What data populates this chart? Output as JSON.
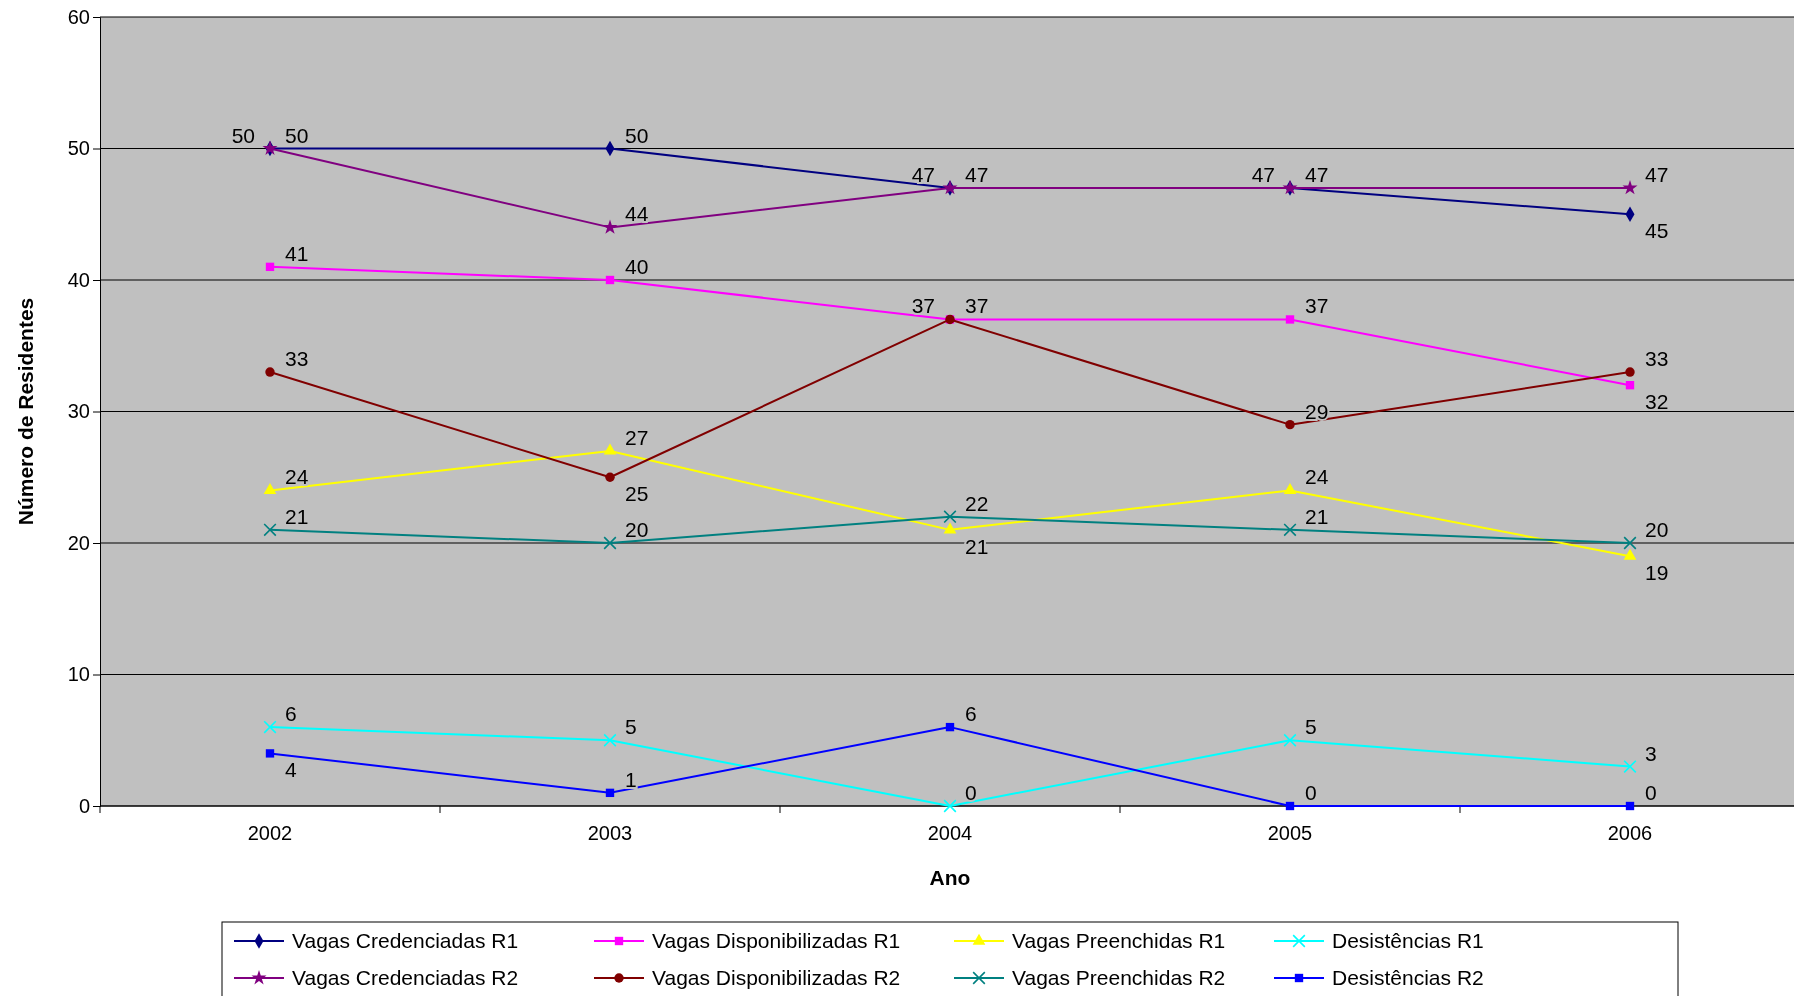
{
  "chart_data": {
    "type": "line",
    "xlabel": "Ano",
    "ylabel": "Número de Residentes",
    "categories": [
      "2002",
      "2003",
      "2004",
      "2005",
      "2006"
    ],
    "ylim": [
      0,
      60
    ],
    "yticks": [
      0,
      10,
      20,
      30,
      40,
      50,
      60
    ],
    "grid": "y",
    "legend": "bottom",
    "data_labels": true,
    "series": [
      {
        "name": "Vagas Credenciadas R1",
        "color": "#000080",
        "marker": "diamond",
        "values": [
          50,
          50,
          47,
          47,
          45
        ]
      },
      {
        "name": "Vagas Disponibilizadas R1",
        "color": "#ff00ff",
        "marker": "square",
        "values": [
          41,
          40,
          37,
          37,
          32
        ]
      },
      {
        "name": "Vagas Preenchidas R1",
        "color": "#ffff00",
        "marker": "triangle",
        "values": [
          24,
          27,
          21,
          24,
          19
        ]
      },
      {
        "name": "Desistências R1",
        "color": "#00ffff",
        "marker": "cross",
        "values": [
          6,
          5,
          0,
          5,
          3
        ]
      },
      {
        "name": "Vagas Credenciadas R2",
        "color": "#800080",
        "marker": "star",
        "values": [
          50,
          44,
          47,
          47,
          47
        ]
      },
      {
        "name": "Vagas Disponibilizadas R2",
        "color": "#800000",
        "marker": "circle",
        "values": [
          33,
          25,
          37,
          29,
          33
        ]
      },
      {
        "name": "Vagas Preenchidas R2",
        "color": "#008080",
        "marker": "cross",
        "values": [
          21,
          20,
          22,
          21,
          20
        ]
      },
      {
        "name": "Desistências R2",
        "color": "#0000ff",
        "marker": "square",
        "values": [
          4,
          1,
          6,
          0,
          0
        ]
      }
    ]
  }
}
